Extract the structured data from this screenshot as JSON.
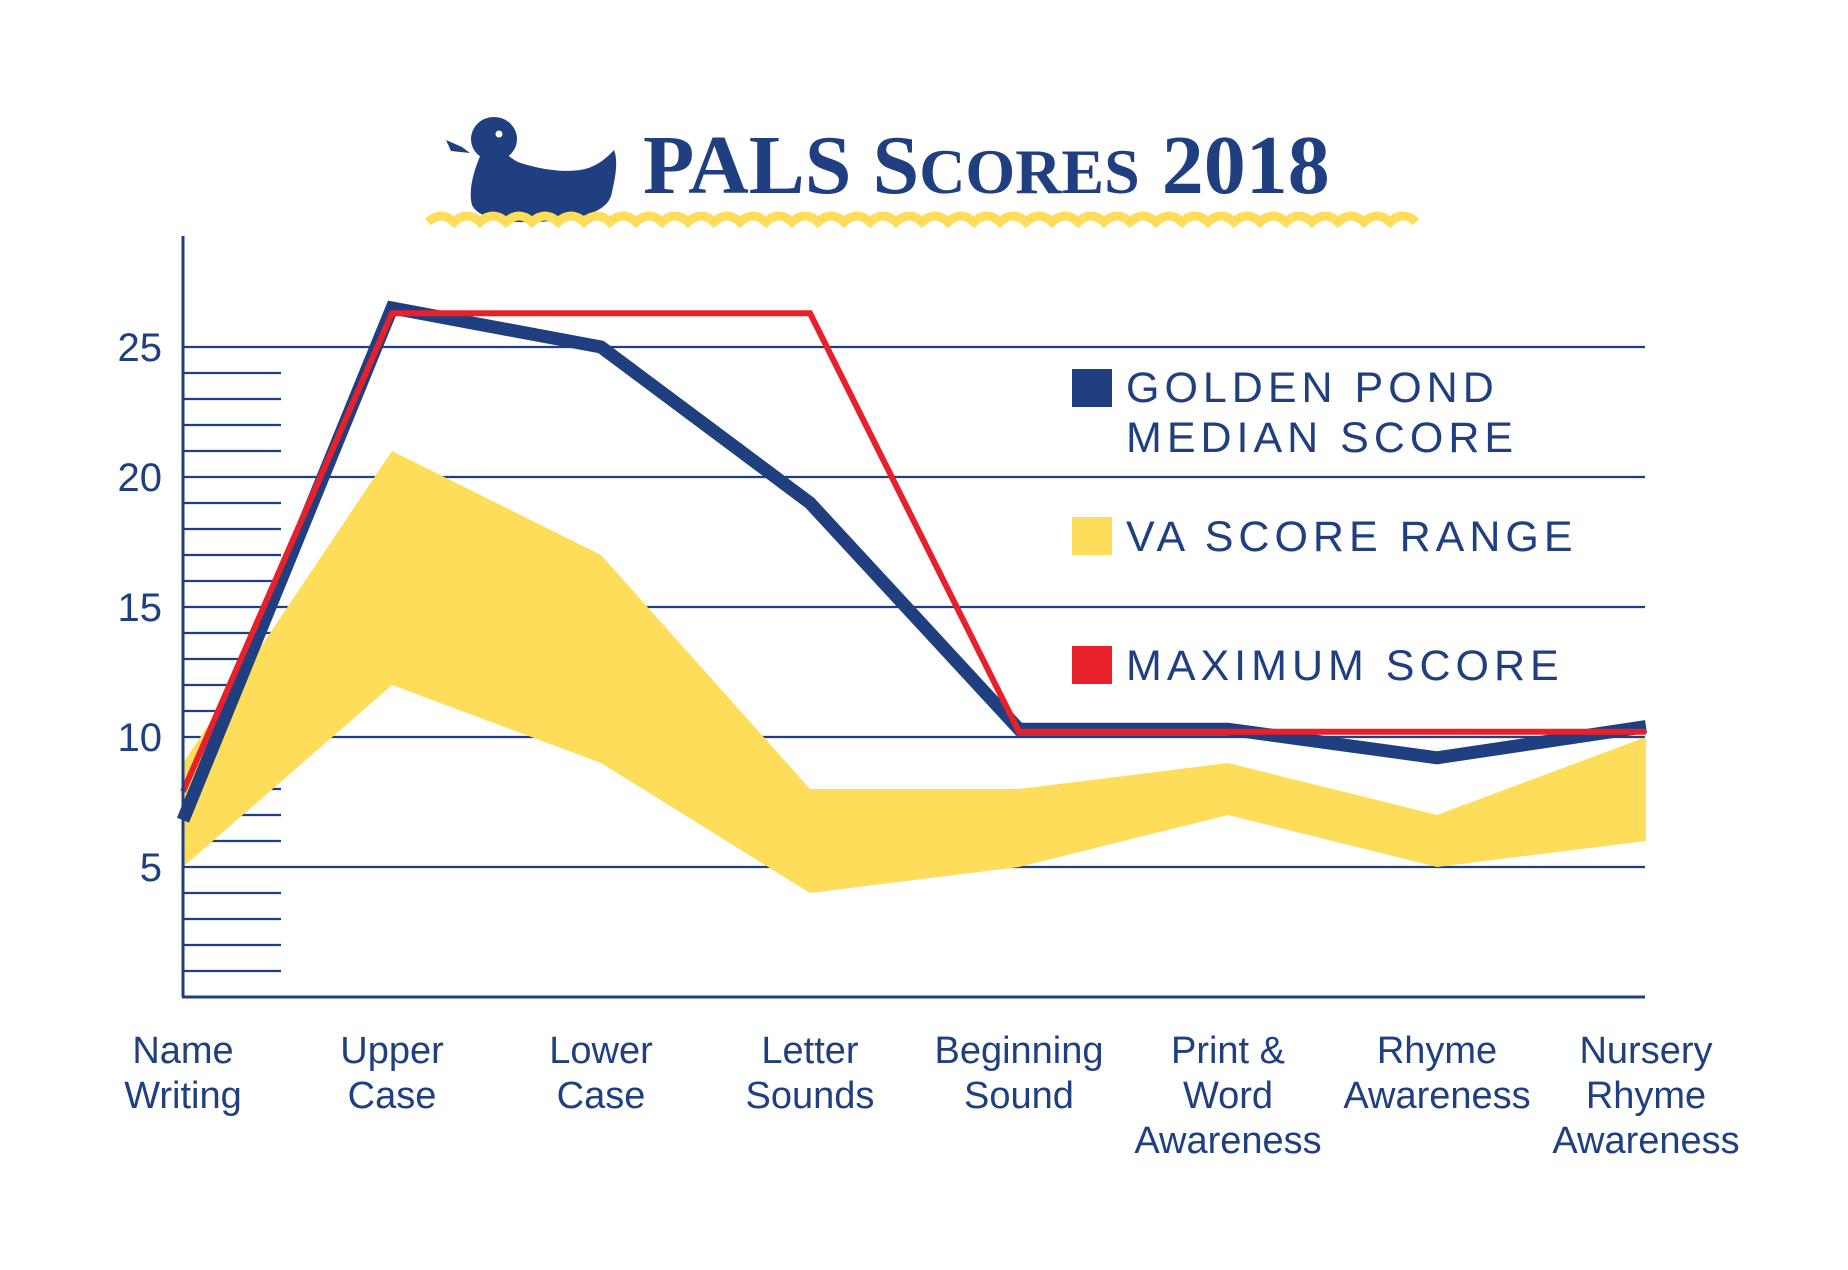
{
  "title": {
    "prefix": "PALS S",
    "smallcaps": "CORES",
    "year": "2018"
  },
  "colors": {
    "navy": "#1f3f80",
    "yellow": "#fedd5a",
    "red": "#e8202a",
    "white": "#ffffff"
  },
  "icons": {
    "duck": "duck-icon",
    "waves": "wave-decoration"
  },
  "legend": [
    {
      "key": "median",
      "lines": [
        "GOLDEN POND",
        "MEDIAN SCORE"
      ],
      "color": "#1f3f80"
    },
    {
      "key": "range",
      "lines": [
        "VA SCORE RANGE"
      ],
      "color": "#fedd5a"
    },
    {
      "key": "max",
      "lines": [
        "MAXIMUM SCORE"
      ],
      "color": "#e8202a"
    }
  ],
  "chart_data": {
    "type": "line",
    "title": "PALS Scores 2018",
    "categories": [
      [
        "Name",
        "Writing"
      ],
      [
        "Upper",
        "Case"
      ],
      [
        "Lower",
        "Case"
      ],
      [
        "Letter",
        "Sounds"
      ],
      [
        "Beginning",
        "Sound"
      ],
      [
        "Print &",
        "Word",
        "Awareness"
      ],
      [
        "Rhyme",
        "Awareness"
      ],
      [
        "Nursery",
        "Rhyme",
        "Awareness"
      ]
    ],
    "yticks": [
      "5",
      "10",
      "15",
      "20",
      "25"
    ],
    "ylim": [
      0,
      28
    ],
    "grid": true,
    "legend_position": "right",
    "series": [
      {
        "name": "GOLDEN POND MEDIAN SCORE",
        "type": "line",
        "color": "#1f3f80",
        "values": [
          6.8,
          26.5,
          25.0,
          19.0,
          10.3,
          10.3,
          9.2,
          10.4
        ]
      },
      {
        "name": "MAXIMUM SCORE",
        "type": "line",
        "color": "#e8202a",
        "values": [
          7.9,
          26.3,
          26.3,
          26.3,
          10.2,
          10.2,
          10.2,
          10.2
        ]
      },
      {
        "name": "VA SCORE RANGE",
        "type": "band",
        "color": "#fedd5a",
        "low": [
          5.0,
          12.0,
          9.0,
          4.0,
          5.0,
          7.0,
          5.0,
          6.0
        ],
        "high": [
          9.0,
          21.0,
          17.0,
          8.0,
          8.0,
          9.0,
          7.0,
          10.0
        ]
      }
    ]
  }
}
